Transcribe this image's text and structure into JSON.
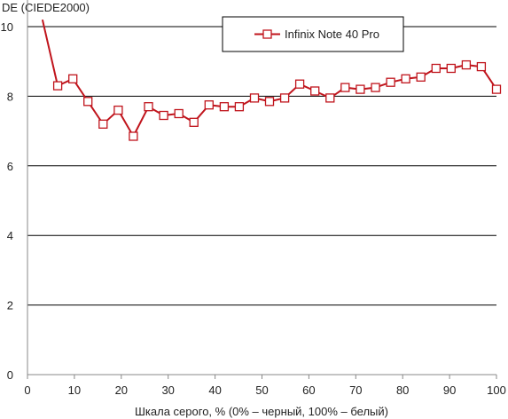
{
  "chart_data": {
    "type": "line",
    "title": "",
    "ylabel": "DE (CIEDE2000)",
    "xlabel": "Шкала серого, % (0% – черный, 100% – белый)",
    "xlim": [
      0,
      100
    ],
    "ylim": [
      0,
      10
    ],
    "xticks": [
      0,
      10,
      20,
      30,
      40,
      50,
      60,
      70,
      80,
      90,
      100
    ],
    "yticks": [
      0,
      2,
      4,
      6,
      8,
      10
    ],
    "grid": "horizontal",
    "legend_position": "top-right",
    "colors": {
      "series": "#c0141c",
      "grid": "#000000",
      "axis": "#888888"
    },
    "series": [
      {
        "name": "Infinix Note 40 Pro",
        "line_start": {
          "x": 3.2,
          "y": 10.2
        },
        "x": [
          6.45,
          9.68,
          12.9,
          16.13,
          19.35,
          22.58,
          25.81,
          29.03,
          32.26,
          35.48,
          38.71,
          41.94,
          45.16,
          48.39,
          51.61,
          54.84,
          58.06,
          61.29,
          64.52,
          67.74,
          70.97,
          74.19,
          77.42,
          80.65,
          83.87,
          87.1,
          90.32,
          93.55,
          96.77,
          100
        ],
        "values": [
          8.3,
          8.5,
          7.85,
          7.2,
          7.6,
          6.85,
          7.7,
          7.45,
          7.5,
          7.25,
          7.75,
          7.7,
          7.7,
          7.95,
          7.85,
          7.95,
          8.35,
          8.15,
          7.95,
          8.25,
          8.2,
          8.25,
          8.4,
          8.5,
          8.55,
          8.8,
          8.8,
          8.9,
          8.85,
          8.2
        ]
      }
    ]
  }
}
